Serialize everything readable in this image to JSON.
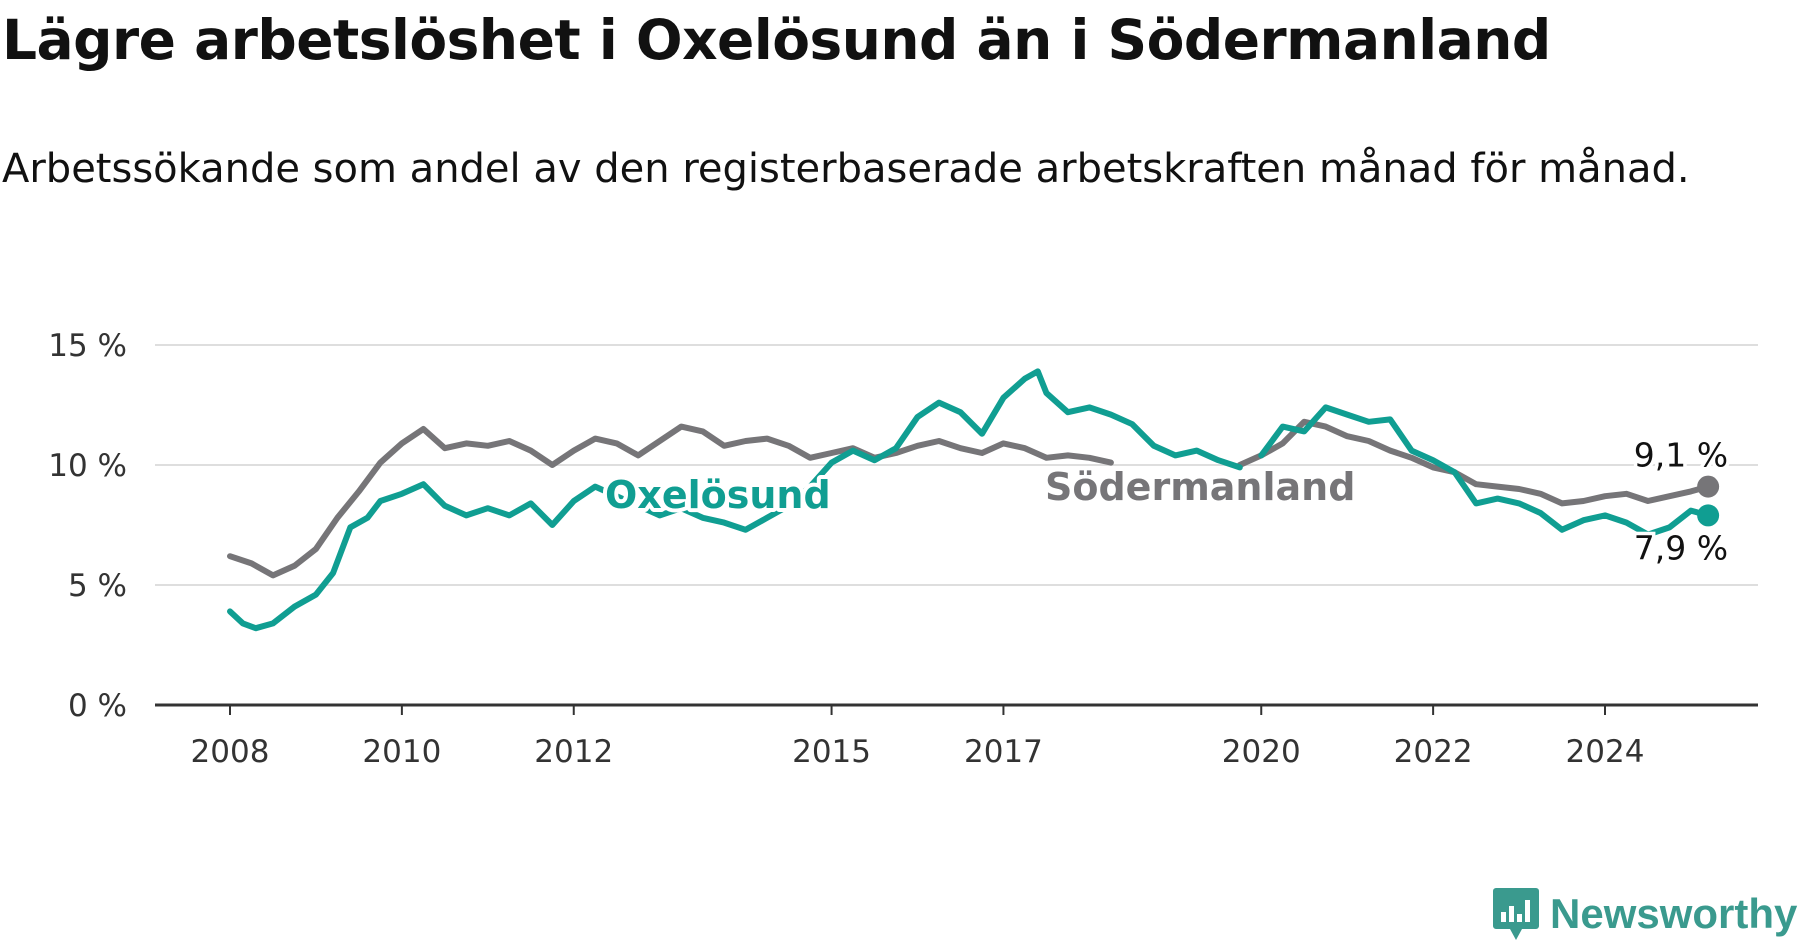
{
  "title": "Lägre arbetslöshet i Oxelösund än i Södermanland",
  "subtitle": "Arbetssökande som andel av den registerbaserade arbetskraften månad för månad.",
  "brand": {
    "name": "Newsworthy",
    "icon": "newsworthy-logo-icon",
    "color": "#3a9a8e"
  },
  "chart_data": {
    "type": "line",
    "title": "",
    "xlabel": "",
    "ylabel": "",
    "xlim": [
      2007.5,
      2025.9
    ],
    "ylim": [
      0,
      15
    ],
    "grid": true,
    "legend": "inline",
    "x_ticks": [
      2008,
      2010,
      2012,
      2015,
      2017,
      2020,
      2022,
      2024
    ],
    "x_tick_labels": [
      "2008",
      "2010",
      "2012",
      "2015",
      "2017",
      "2020",
      "2022",
      "2024"
    ],
    "y_ticks": [
      0,
      5,
      10,
      15
    ],
    "y_tick_labels": [
      "0 %",
      "5 %",
      "10 %",
      "15 %"
    ],
    "series": [
      {
        "name": "Södermanland",
        "color": "#767578",
        "end_label": "9,1 %",
        "points": [
          [
            2008.0,
            6.2
          ],
          [
            2008.25,
            5.9
          ],
          [
            2008.5,
            5.4
          ],
          [
            2008.75,
            5.8
          ],
          [
            2009.0,
            6.5
          ],
          [
            2009.25,
            7.8
          ],
          [
            2009.5,
            8.9
          ],
          [
            2009.75,
            10.1
          ],
          [
            2010.0,
            10.9
          ],
          [
            2010.25,
            11.5
          ],
          [
            2010.5,
            10.7
          ],
          [
            2010.75,
            10.9
          ],
          [
            2011.0,
            10.8
          ],
          [
            2011.25,
            11.0
          ],
          [
            2011.5,
            10.6
          ],
          [
            2011.75,
            10.0
          ],
          [
            2012.0,
            10.6
          ],
          [
            2012.25,
            11.1
          ],
          [
            2012.5,
            10.9
          ],
          [
            2012.75,
            10.4
          ],
          [
            2013.0,
            11.0
          ],
          [
            2013.25,
            11.6
          ],
          [
            2013.5,
            11.4
          ],
          [
            2013.75,
            10.8
          ],
          [
            2014.0,
            11.0
          ],
          [
            2014.25,
            11.1
          ],
          [
            2014.5,
            10.8
          ],
          [
            2014.75,
            10.3
          ],
          [
            2015.0,
            10.5
          ],
          [
            2015.25,
            10.7
          ],
          [
            2015.5,
            10.3
          ],
          [
            2015.75,
            10.5
          ],
          [
            2016.0,
            10.8
          ],
          [
            2016.25,
            11.0
          ],
          [
            2016.5,
            10.7
          ],
          [
            2016.75,
            10.5
          ],
          [
            2017.0,
            10.9
          ],
          [
            2017.25,
            10.7
          ],
          [
            2017.5,
            10.3
          ],
          [
            2017.75,
            10.4
          ],
          [
            2018.0,
            10.3
          ],
          [
            2018.25,
            10.1
          ],
          null,
          [
            2019.75,
            10.0
          ],
          [
            2020.0,
            10.4
          ],
          [
            2020.25,
            10.9
          ],
          [
            2020.5,
            11.8
          ],
          [
            2020.75,
            11.6
          ],
          [
            2021.0,
            11.2
          ],
          [
            2021.25,
            11.0
          ],
          [
            2021.5,
            10.6
          ],
          [
            2021.75,
            10.3
          ],
          [
            2022.0,
            9.9
          ],
          [
            2022.25,
            9.7
          ],
          [
            2022.5,
            9.2
          ],
          [
            2022.75,
            9.1
          ],
          [
            2023.0,
            9.0
          ],
          [
            2023.25,
            8.8
          ],
          [
            2023.5,
            8.4
          ],
          [
            2023.75,
            8.5
          ],
          [
            2024.0,
            8.7
          ],
          [
            2024.25,
            8.8
          ],
          [
            2024.5,
            8.5
          ],
          [
            2024.75,
            8.7
          ],
          [
            2025.0,
            8.9
          ],
          [
            2025.2,
            9.1
          ]
        ]
      },
      {
        "name": "Oxelösund",
        "color": "#109e92",
        "end_label": "7,9 %",
        "points": [
          [
            2008.0,
            3.9
          ],
          [
            2008.15,
            3.4
          ],
          [
            2008.3,
            3.2
          ],
          [
            2008.5,
            3.4
          ],
          [
            2008.75,
            4.1
          ],
          [
            2009.0,
            4.6
          ],
          [
            2009.2,
            5.5
          ],
          [
            2009.4,
            7.4
          ],
          [
            2009.6,
            7.8
          ],
          [
            2009.75,
            8.5
          ],
          [
            2010.0,
            8.8
          ],
          [
            2010.25,
            9.2
          ],
          [
            2010.5,
            8.3
          ],
          [
            2010.75,
            7.9
          ],
          [
            2011.0,
            8.2
          ],
          [
            2011.25,
            7.9
          ],
          [
            2011.5,
            8.4
          ],
          [
            2011.75,
            7.5
          ],
          [
            2012.0,
            8.5
          ],
          [
            2012.25,
            9.1
          ],
          [
            2012.5,
            8.7
          ],
          [
            2012.75,
            8.3
          ],
          [
            2013.0,
            7.9
          ],
          [
            2013.25,
            8.2
          ],
          [
            2013.5,
            7.8
          ],
          [
            2013.75,
            7.6
          ],
          [
            2014.0,
            7.3
          ],
          [
            2014.25,
            7.8
          ],
          [
            2014.5,
            8.3
          ],
          [
            2014.75,
            9.1
          ],
          [
            2015.0,
            10.1
          ],
          [
            2015.25,
            10.6
          ],
          [
            2015.5,
            10.2
          ],
          [
            2015.75,
            10.7
          ],
          [
            2016.0,
            12.0
          ],
          [
            2016.25,
            12.6
          ],
          [
            2016.5,
            12.2
          ],
          [
            2016.75,
            11.3
          ],
          [
            2017.0,
            12.8
          ],
          [
            2017.25,
            13.6
          ],
          [
            2017.4,
            13.9
          ],
          [
            2017.5,
            13.0
          ],
          [
            2017.75,
            12.2
          ],
          [
            2018.0,
            12.4
          ],
          [
            2018.25,
            12.1
          ],
          [
            2018.5,
            11.7
          ],
          [
            2018.75,
            10.8
          ],
          [
            2019.0,
            10.4
          ],
          [
            2019.25,
            10.6
          ],
          [
            2019.5,
            10.2
          ],
          [
            2019.75,
            9.9
          ],
          null,
          [
            2020.0,
            10.4
          ],
          [
            2020.25,
            11.6
          ],
          [
            2020.5,
            11.4
          ],
          [
            2020.75,
            12.4
          ],
          [
            2021.0,
            12.1
          ],
          [
            2021.25,
            11.8
          ],
          [
            2021.5,
            11.9
          ],
          [
            2021.75,
            10.6
          ],
          [
            2022.0,
            10.2
          ],
          [
            2022.25,
            9.7
          ],
          [
            2022.5,
            8.4
          ],
          [
            2022.75,
            8.6
          ],
          [
            2023.0,
            8.4
          ],
          [
            2023.25,
            8.0
          ],
          [
            2023.5,
            7.3
          ],
          [
            2023.75,
            7.7
          ],
          [
            2024.0,
            7.9
          ],
          [
            2024.25,
            7.6
          ],
          [
            2024.5,
            7.1
          ],
          [
            2024.75,
            7.4
          ],
          [
            2025.0,
            8.1
          ],
          [
            2025.2,
            7.9
          ]
        ]
      }
    ]
  }
}
